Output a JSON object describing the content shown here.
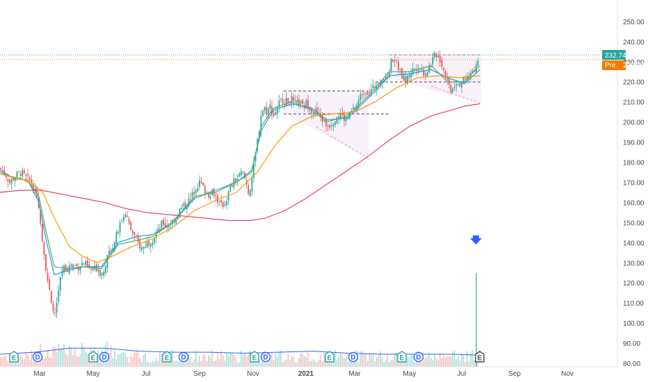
{
  "chart_data": {
    "type": "candlestick",
    "title": "",
    "y_axis": {
      "ticks": [
        250,
        240,
        230,
        220,
        210,
        200,
        190,
        180,
        170,
        160,
        150,
        140,
        130,
        120,
        110,
        100,
        90,
        80
      ],
      "labels": [
        "250.00",
        "240.00",
        "230.00",
        "220.00",
        "210.00",
        "200.00",
        "190.00",
        "180.00",
        "170.00",
        "160.00",
        "150.00",
        "140.00",
        "130.00",
        "120.00",
        "110.00",
        "100.00",
        "90.00",
        "80.00"
      ],
      "range": [
        79,
        258
      ]
    },
    "x_axis": {
      "labels": [
        "Mar",
        "May",
        "Jul",
        "Sep",
        "Nov",
        "2021",
        "Mar",
        "May",
        "Jul",
        "Sep",
        "Nov"
      ],
      "year_label": "2021"
    },
    "price_tags": [
      {
        "label": "",
        "value_text": "232.74",
        "value": 232.74,
        "color": "#26a69a"
      },
      {
        "label": "Pre",
        "value_text": "230.27",
        "value": 230.27,
        "color": "#f57c00"
      }
    ],
    "price_path": [
      [
        0,
        177
      ],
      [
        8,
        174
      ],
      [
        14,
        170
      ],
      [
        22,
        173
      ],
      [
        30,
        175
      ],
      [
        38,
        172
      ],
      [
        46,
        170
      ],
      [
        52,
        163
      ],
      [
        58,
        152
      ],
      [
        62,
        138
      ],
      [
        66,
        128
      ],
      [
        70,
        118
      ],
      [
        74,
        108
      ],
      [
        78,
        104
      ],
      [
        82,
        110
      ],
      [
        86,
        120
      ],
      [
        90,
        128
      ],
      [
        96,
        127
      ],
      [
        104,
        129
      ],
      [
        112,
        128
      ],
      [
        120,
        130
      ],
      [
        128,
        127
      ],
      [
        134,
        126
      ],
      [
        140,
        128
      ],
      [
        146,
        124
      ],
      [
        152,
        130
      ],
      [
        158,
        136
      ],
      [
        164,
        140
      ],
      [
        170,
        146
      ],
      [
        176,
        152
      ],
      [
        180,
        156
      ],
      [
        186,
        148
      ],
      [
        192,
        144
      ],
      [
        198,
        140
      ],
      [
        204,
        137
      ],
      [
        212,
        140
      ],
      [
        220,
        142
      ],
      [
        228,
        146
      ],
      [
        234,
        150
      ],
      [
        240,
        148
      ],
      [
        246,
        150
      ],
      [
        252,
        152
      ],
      [
        258,
        156
      ],
      [
        264,
        158
      ],
      [
        270,
        160
      ],
      [
        276,
        163
      ],
      [
        282,
        168
      ],
      [
        288,
        170
      ],
      [
        294,
        166
      ],
      [
        300,
        164
      ],
      [
        306,
        166
      ],
      [
        312,
        162
      ],
      [
        318,
        158
      ],
      [
        324,
        160
      ],
      [
        330,
        166
      ],
      [
        336,
        170
      ],
      [
        342,
        172
      ],
      [
        348,
        175
      ],
      [
        354,
        170
      ],
      [
        358,
        164
      ],
      [
        362,
        172
      ],
      [
        366,
        180
      ],
      [
        372,
        195
      ],
      [
        376,
        205
      ],
      [
        380,
        207
      ],
      [
        384,
        205
      ],
      [
        388,
        208
      ],
      [
        394,
        203
      ],
      [
        400,
        209
      ],
      [
        406,
        211
      ],
      [
        412,
        210
      ],
      [
        418,
        212
      ],
      [
        424,
        208
      ],
      [
        430,
        210
      ],
      [
        436,
        207
      ],
      [
        442,
        210
      ],
      [
        448,
        206
      ],
      [
        454,
        205
      ],
      [
        460,
        203
      ],
      [
        466,
        200
      ],
      [
        472,
        198
      ],
      [
        478,
        200
      ],
      [
        484,
        203
      ],
      [
        490,
        204
      ],
      [
        496,
        201
      ],
      [
        502,
        203
      ],
      [
        508,
        206
      ],
      [
        514,
        209
      ],
      [
        520,
        214
      ],
      [
        526,
        216
      ],
      [
        532,
        215
      ],
      [
        538,
        217
      ],
      [
        544,
        220
      ],
      [
        550,
        222
      ],
      [
        556,
        221
      ],
      [
        560,
        226
      ],
      [
        564,
        232
      ],
      [
        568,
        231
      ],
      [
        572,
        228
      ],
      [
        576,
        224
      ],
      [
        580,
        222
      ],
      [
        584,
        220
      ],
      [
        588,
        224
      ],
      [
        594,
        226
      ],
      [
        600,
        228
      ],
      [
        606,
        226
      ],
      [
        612,
        224
      ],
      [
        618,
        228
      ],
      [
        624,
        232
      ],
      [
        628,
        234
      ],
      [
        632,
        232
      ],
      [
        636,
        228
      ],
      [
        640,
        224
      ],
      [
        644,
        220
      ],
      [
        648,
        216
      ],
      [
        652,
        218
      ],
      [
        656,
        220
      ],
      [
        660,
        219
      ],
      [
        664,
        220
      ],
      [
        668,
        221
      ],
      [
        672,
        222
      ],
      [
        676,
        223
      ],
      [
        680,
        226
      ],
      [
        684,
        228
      ],
      [
        688,
        231
      ]
    ],
    "series": [
      {
        "name": "",
        "color": "#2196f3",
        "values": [
          [
            0,
            176
          ],
          [
            20,
            172
          ],
          [
            40,
            171
          ],
          [
            56,
            160
          ],
          [
            66,
            142
          ],
          [
            78,
            124
          ],
          [
            96,
            126
          ],
          [
            120,
            128
          ],
          [
            146,
            128
          ],
          [
            170,
            140
          ],
          [
            196,
            143
          ],
          [
            220,
            144
          ],
          [
            248,
            150
          ],
          [
            280,
            162
          ],
          [
            310,
            166
          ],
          [
            340,
            170
          ],
          [
            362,
            176
          ],
          [
            376,
            196
          ],
          [
            394,
            206
          ],
          [
            420,
            209
          ],
          [
            448,
            207
          ],
          [
            470,
            201
          ],
          [
            500,
            202
          ],
          [
            530,
            212
          ],
          [
            560,
            223
          ],
          [
            590,
            224
          ],
          [
            620,
            226
          ],
          [
            644,
            222
          ],
          [
            668,
            219
          ],
          [
            690,
            226
          ]
        ]
      },
      {
        "name": "",
        "color": "#4caf50",
        "values": [
          [
            0,
            175
          ],
          [
            20,
            172
          ],
          [
            40,
            171
          ],
          [
            56,
            163
          ],
          [
            66,
            146
          ],
          [
            78,
            128
          ],
          [
            96,
            127
          ],
          [
            120,
            128
          ],
          [
            146,
            127
          ],
          [
            170,
            139
          ],
          [
            196,
            141
          ],
          [
            220,
            143
          ],
          [
            248,
            150
          ],
          [
            280,
            163
          ],
          [
            310,
            165
          ],
          [
            340,
            170
          ],
          [
            362,
            175
          ],
          [
            376,
            198
          ],
          [
            394,
            207
          ],
          [
            420,
            210
          ],
          [
            448,
            206
          ],
          [
            470,
            200
          ],
          [
            500,
            203
          ],
          [
            530,
            213
          ],
          [
            560,
            225
          ],
          [
            590,
            225
          ],
          [
            620,
            228
          ],
          [
            644,
            220
          ],
          [
            668,
            220
          ],
          [
            690,
            228
          ]
        ]
      },
      {
        "name": "",
        "color": "#ff9800",
        "values": [
          [
            0,
            174
          ],
          [
            30,
            172
          ],
          [
            60,
            166
          ],
          [
            80,
            151
          ],
          [
            100,
            138
          ],
          [
            120,
            133
          ],
          [
            140,
            130
          ],
          [
            160,
            133
          ],
          [
            190,
            138
          ],
          [
            220,
            142
          ],
          [
            250,
            148
          ],
          [
            280,
            156
          ],
          [
            310,
            161
          ],
          [
            340,
            165
          ],
          [
            370,
            175
          ],
          [
            395,
            188
          ],
          [
            420,
            198
          ],
          [
            450,
            203
          ],
          [
            480,
            204
          ],
          [
            510,
            205
          ],
          [
            540,
            210
          ],
          [
            570,
            217
          ],
          [
            600,
            222
          ],
          [
            630,
            223
          ],
          [
            660,
            222
          ],
          [
            690,
            223
          ]
        ]
      },
      {
        "name": "",
        "color": "#e8415a",
        "values": [
          [
            0,
            165
          ],
          [
            30,
            166
          ],
          [
            60,
            166
          ],
          [
            90,
            164
          ],
          [
            120,
            162
          ],
          [
            150,
            160
          ],
          [
            180,
            157
          ],
          [
            210,
            155
          ],
          [
            240,
            154
          ],
          [
            270,
            153
          ],
          [
            300,
            152
          ],
          [
            330,
            151
          ],
          [
            360,
            151
          ],
          [
            380,
            152
          ],
          [
            410,
            156
          ],
          [
            440,
            162
          ],
          [
            470,
            169
          ],
          [
            500,
            176
          ],
          [
            530,
            183
          ],
          [
            560,
            191
          ],
          [
            590,
            198
          ],
          [
            620,
            203
          ],
          [
            650,
            206
          ],
          [
            670,
            208
          ],
          [
            690,
            209
          ]
        ]
      },
      {
        "name": "",
        "color": "#2962ff",
        "type": "volume_avg",
        "values": [
          [
            0,
            84.5
          ],
          [
            50,
            85.5
          ],
          [
            100,
            87.5
          ],
          [
            150,
            87.5
          ],
          [
            200,
            86
          ],
          [
            250,
            85.5
          ],
          [
            300,
            85.5
          ],
          [
            350,
            85
          ],
          [
            400,
            85.5
          ],
          [
            450,
            86
          ],
          [
            500,
            85
          ],
          [
            550,
            84.5
          ],
          [
            600,
            84.5
          ],
          [
            650,
            84.5
          ],
          [
            690,
            84
          ]
        ]
      }
    ],
    "events": [
      {
        "text": "E",
        "kind": "earnings",
        "x": 20
      },
      {
        "text": "D",
        "kind": "dividend",
        "x": 54
      },
      {
        "text": "E",
        "kind": "earnings",
        "x": 134
      },
      {
        "text": "D",
        "kind": "dividend",
        "x": 150
      },
      {
        "text": "E",
        "kind": "earnings",
        "x": 240
      },
      {
        "text": "D",
        "kind": "dividend",
        "x": 264
      },
      {
        "text": "E",
        "kind": "earnings",
        "x": 366
      },
      {
        "text": "D",
        "kind": "dividend",
        "x": 382
      },
      {
        "text": "E",
        "kind": "earnings",
        "x": 474
      },
      {
        "text": "D",
        "kind": "dividend",
        "x": 508
      },
      {
        "text": "E",
        "kind": "earnings",
        "x": 578
      },
      {
        "text": "D",
        "kind": "dividend",
        "x": 602
      },
      {
        "text": "E",
        "kind": "earnings-upcoming",
        "x": 690
      }
    ],
    "grid": false,
    "colors": {
      "up": "#26a69a",
      "down": "#ef5350",
      "axis": "#434651",
      "arrow": "#2962ff"
    }
  }
}
